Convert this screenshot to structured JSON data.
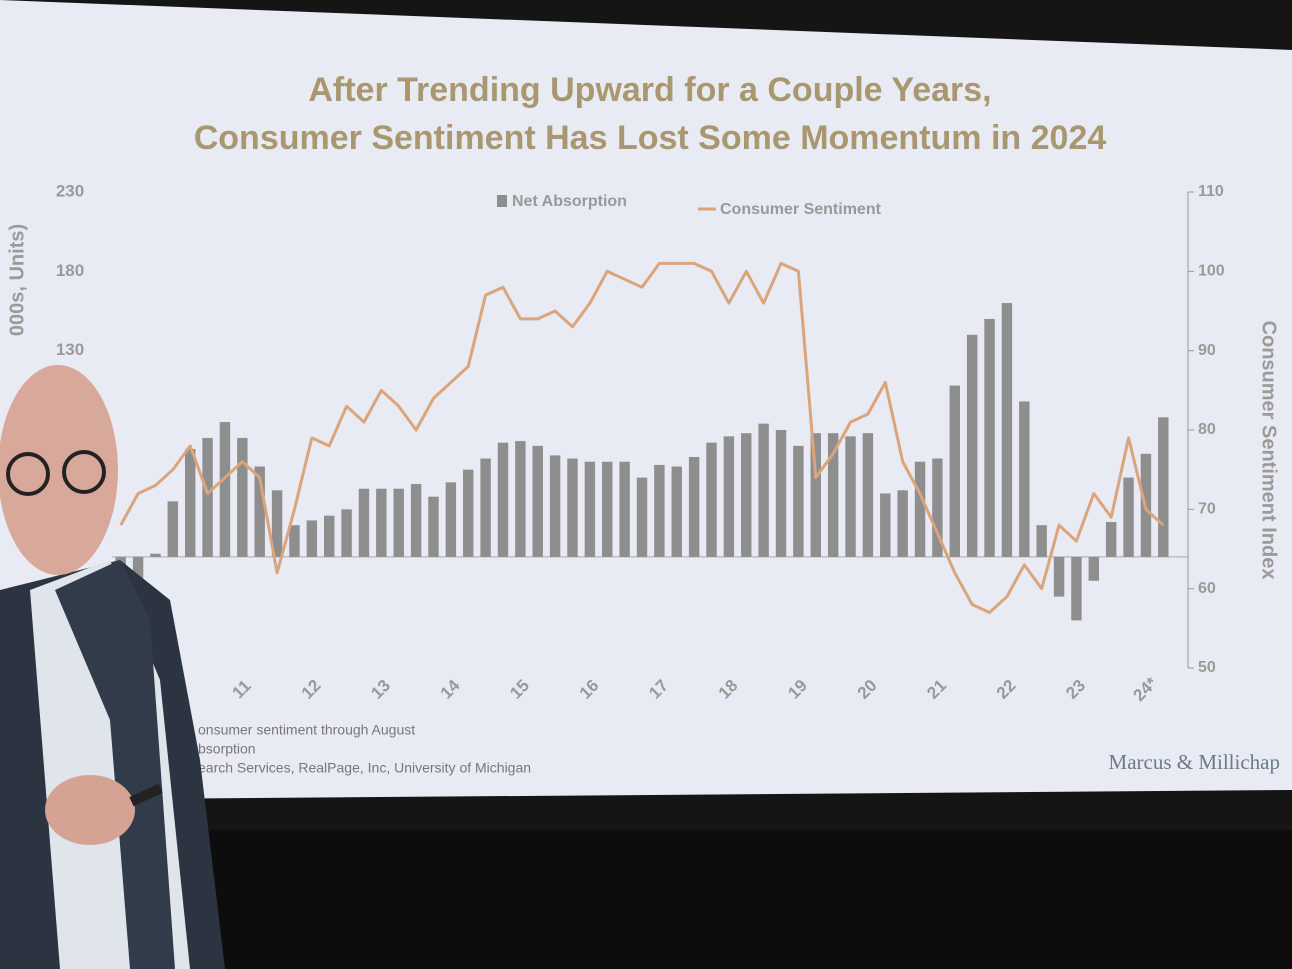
{
  "chart_data": {
    "type": "bar-line",
    "title": [
      "After Trending Upward for a Couple Years,",
      "Consumer Sentiment Has Lost Some Momentum in 2024"
    ],
    "ylabel": "000s, Units)",
    "y2label": "Consumer Sentiment Index",
    "categories": [
      null,
      null,
      null,
      null,
      null,
      null,
      null,
      "11",
      null,
      null,
      null,
      "12",
      null,
      null,
      null,
      "13",
      null,
      null,
      null,
      "14",
      null,
      null,
      null,
      "15",
      null,
      null,
      null,
      "16",
      null,
      null,
      null,
      "17",
      null,
      null,
      null,
      "18",
      null,
      null,
      null,
      "19",
      null,
      null,
      null,
      "20",
      null,
      null,
      null,
      "21",
      null,
      null,
      null,
      "22",
      null,
      null,
      null,
      "23",
      null,
      null,
      null,
      "24*",
      null
    ],
    "series": [
      {
        "name": "Net Absorption",
        "color": "#8e8e8e",
        "values": [
          -15,
          -20,
          2,
          35,
          68,
          75,
          85,
          75,
          57,
          42,
          20,
          23,
          26,
          30,
          43,
          43,
          43,
          46,
          38,
          47,
          55,
          62,
          72,
          73,
          70,
          64,
          62,
          60,
          60,
          60,
          50,
          58,
          57,
          63,
          72,
          76,
          78,
          84,
          80,
          70,
          78,
          78,
          76,
          78,
          40,
          42,
          60,
          62,
          108,
          140,
          150,
          160,
          98,
          20,
          -25,
          -40,
          -15,
          22,
          50,
          65,
          88
        ]
      },
      {
        "name": "Consumer Sentiment",
        "color": "#dba57c",
        "axis": "y2",
        "values": [
          68,
          72,
          73,
          75,
          78,
          72,
          74,
          76,
          74,
          62,
          70,
          79,
          78,
          83,
          81,
          85,
          83,
          80,
          84,
          86,
          88,
          97,
          98,
          94,
          94,
          95,
          93,
          96,
          100,
          99,
          98,
          101,
          101,
          101,
          100,
          96,
          100,
          96,
          101,
          100,
          74,
          77,
          81,
          82,
          86,
          76,
          72,
          67,
          62,
          58,
          57,
          59,
          63,
          60,
          68,
          66,
          72,
          69,
          79,
          70,
          68
        ]
      }
    ],
    "ylim": [
      -70,
      230
    ],
    "yticks": [
      130,
      180,
      230
    ],
    "y2lim": [
      50,
      110
    ],
    "y2ticks": [
      50,
      60,
      70,
      80,
      90,
      100,
      110
    ],
    "legend": "top",
    "footnotes": [
      "onsumer sentiment through August",
      "bsorption",
      "earch Services, RealPage, Inc, University of Michigan"
    ],
    "brand": "Marcus & Millichap"
  }
}
